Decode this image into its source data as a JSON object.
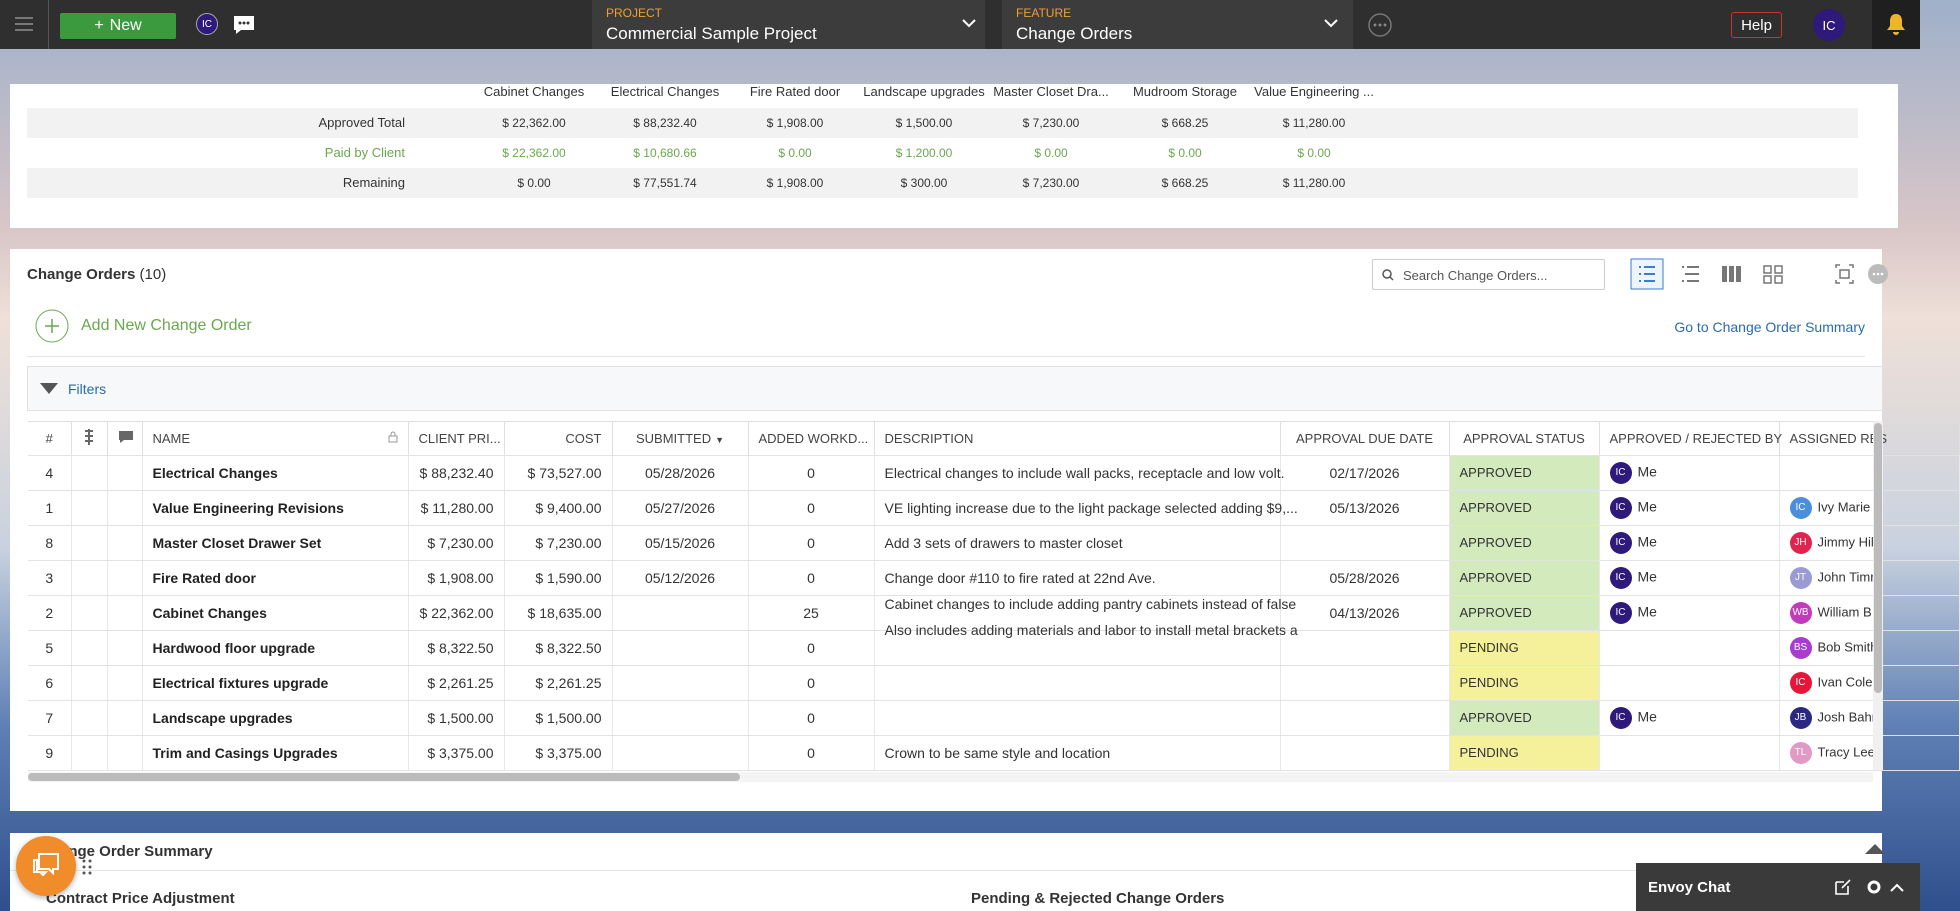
{
  "header": {
    "new_button": "New",
    "user_initials": "IC",
    "project_label": "PROJECT",
    "project_name": "Commercial Sample Project",
    "feature_label": "FEATURE",
    "feature_name": "Change Orders",
    "help": "Help",
    "avatar": "IC"
  },
  "summary": {
    "columns": [
      "Cabinet Changes",
      "Electrical Changes",
      "Fire Rated door",
      "Landscape upgrades",
      "Master Closet Dra...",
      "Mudroom Storage",
      "Value Engineering ..."
    ],
    "rows": [
      {
        "label": "Approved Total",
        "values": [
          "$ 22,362.00",
          "$ 88,232.40",
          "$ 1,908.00",
          "$ 1,500.00",
          "$ 7,230.00",
          "$ 668.25",
          "$ 11,280.00"
        ]
      },
      {
        "label": "Paid by Client",
        "values": [
          "$ 22,362.00",
          "$ 10,680.66",
          "$ 0.00",
          "$ 1,200.00",
          "$ 0.00",
          "$ 0.00",
          "$ 0.00"
        ]
      },
      {
        "label": "Remaining",
        "values": [
          "$ 0.00",
          "$ 77,551.74",
          "$ 1,908.00",
          "$ 300.00",
          "$ 7,230.00",
          "$ 668.25",
          "$ 11,280.00"
        ]
      }
    ]
  },
  "change_orders": {
    "title": "Change Orders",
    "count": "(10)",
    "search_placeholder": "Search Change Orders...",
    "add_new": "Add New Change Order",
    "summary_link": "Go to Change Order Summary",
    "filters": "Filters",
    "columns": [
      "#",
      "NAME",
      "CLIENT PRI...",
      "COST",
      "SUBMITTED",
      "ADDED WORKD...",
      "DESCRIPTION",
      "APPROVAL DUE DATE",
      "APPROVAL STATUS",
      "APPROVED / REJECTED BY",
      "ASSIGNED RES"
    ],
    "rows": [
      {
        "number": 4,
        "name": "Electrical Changes",
        "client_price": "$ 88,232.40",
        "cost": "$ 73,527.00",
        "submitted": "05/28/2026",
        "added_workdays": 0,
        "description": [
          "Electrical changes to include wall packs, receptacle and low volt."
        ],
        "due_date": "02/17/2026",
        "status": "APPROVED",
        "approved_by": {
          "initials": "IC",
          "name": "Me"
        },
        "assigned": null
      },
      {
        "number": 1,
        "name": "Value Engineering Revisions",
        "client_price": "$ 11,280.00",
        "cost": "$ 9,400.00",
        "submitted": "05/27/2026",
        "added_workdays": 0,
        "description": [
          "VE lighting increase due to the light package selected adding $9,..."
        ],
        "due_date": "05/13/2026",
        "status": "APPROVED",
        "approved_by": {
          "initials": "IC",
          "name": "Me"
        },
        "assigned": {
          "initials": "IC",
          "name": "Ivy Marie",
          "color": "#4a8fdc"
        }
      },
      {
        "number": 8,
        "name": "Master Closet Drawer Set",
        "client_price": "$ 7,230.00",
        "cost": "$ 7,230.00",
        "submitted": "05/15/2026",
        "added_workdays": 0,
        "description": [
          "Add 3 sets of drawers to master closet"
        ],
        "due_date": null,
        "status": "APPROVED",
        "approved_by": {
          "initials": "IC",
          "name": "Me"
        },
        "assigned": {
          "initials": "JH",
          "name": "Jimmy Hil",
          "color": "#e0244f"
        }
      },
      {
        "number": 3,
        "name": "Fire Rated door",
        "client_price": "$ 1,908.00",
        "cost": "$ 1,590.00",
        "submitted": "05/12/2026",
        "added_workdays": 0,
        "description": [
          "Change door #110 to fire rated at 22nd Ave."
        ],
        "due_date": "05/28/2026",
        "status": "APPROVED",
        "approved_by": {
          "initials": "IC",
          "name": "Me"
        },
        "assigned": {
          "initials": "JT",
          "name": "John Timr",
          "color": "#9a9ad4"
        }
      },
      {
        "number": 2,
        "name": "Cabinet Changes",
        "client_price": "$ 22,362.00",
        "cost": "$ 18,635.00",
        "submitted": null,
        "added_workdays": 25,
        "description": [
          "Cabinet changes to include adding pantry cabinets instead of false",
          "Also includes adding materials and labor to install metal brackets a"
        ],
        "due_date": "04/13/2026",
        "status": "APPROVED",
        "approved_by": {
          "initials": "IC",
          "name": "Me"
        },
        "assigned": {
          "initials": "WB",
          "name": "William B",
          "color": "#c23bbd"
        }
      },
      {
        "number": 5,
        "name": "Hardwood floor upgrade",
        "client_price": "$ 8,322.50",
        "cost": "$ 8,322.50",
        "submitted": null,
        "added_workdays": 0,
        "description": [],
        "due_date": null,
        "status": "PENDING",
        "approved_by": null,
        "assigned": {
          "initials": "BS",
          "name": "Bob Smith",
          "color": "#a93ccf"
        }
      },
      {
        "number": 6,
        "name": "Electrical fixtures upgrade",
        "client_price": "$ 2,261.25",
        "cost": "$ 2,261.25",
        "submitted": null,
        "added_workdays": 0,
        "description": [],
        "due_date": null,
        "status": "PENDING",
        "approved_by": null,
        "assigned": {
          "initials": "IC",
          "name": "Ivan Cole",
          "color": "#e5163a"
        }
      },
      {
        "number": 7,
        "name": "Landscape upgrades",
        "client_price": "$ 1,500.00",
        "cost": "$ 1,500.00",
        "submitted": null,
        "added_workdays": 0,
        "description": [],
        "due_date": null,
        "status": "APPROVED",
        "approved_by": {
          "initials": "IC",
          "name": "Me"
        },
        "assigned": {
          "initials": "JB",
          "name": "Josh Bahr",
          "color": "#2b2882"
        }
      },
      {
        "number": 9,
        "name": "Trim and Casings Upgrades",
        "client_price": "$ 3,375.00",
        "cost": "$ 3,375.00",
        "submitted": null,
        "added_workdays": 0,
        "description": [
          "Crown to be same style and location"
        ],
        "due_date": null,
        "status": "PENDING",
        "approved_by": null,
        "assigned": {
          "initials": "TL",
          "name": "Tracy Lee",
          "color": "#e29ac4"
        }
      }
    ]
  },
  "order_summary": {
    "title": "Change Order Summary",
    "contract_price_adjustment": "Contract Price Adjustment",
    "pending_rejected": "Pending & Rejected Change Orders"
  },
  "chat": {
    "title": "Envoy Chat"
  }
}
